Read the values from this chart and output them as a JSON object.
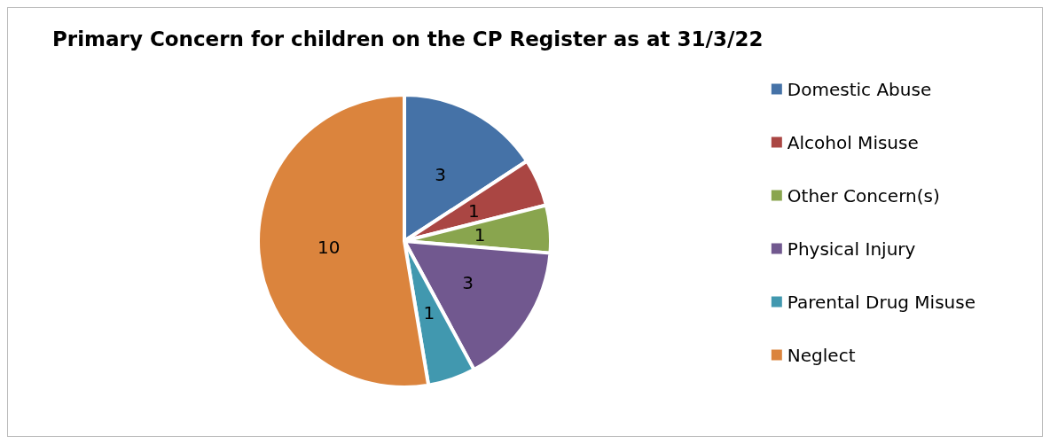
{
  "chart_data": {
    "type": "pie",
    "title": "Primary Concern for children on the CP Register as at 31/3/22",
    "categories": [
      "Domestic Abuse",
      "Alcohol Misuse",
      "Other Concern(s)",
      "Physical Injury",
      "Parental Drug Misuse",
      "Neglect"
    ],
    "values": [
      3,
      1,
      1,
      3,
      1,
      10
    ],
    "colors": [
      "#4572a7",
      "#aa4643",
      "#89a54e",
      "#71588f",
      "#4198af",
      "#db843d"
    ],
    "data_labels": true,
    "legend": "right"
  }
}
